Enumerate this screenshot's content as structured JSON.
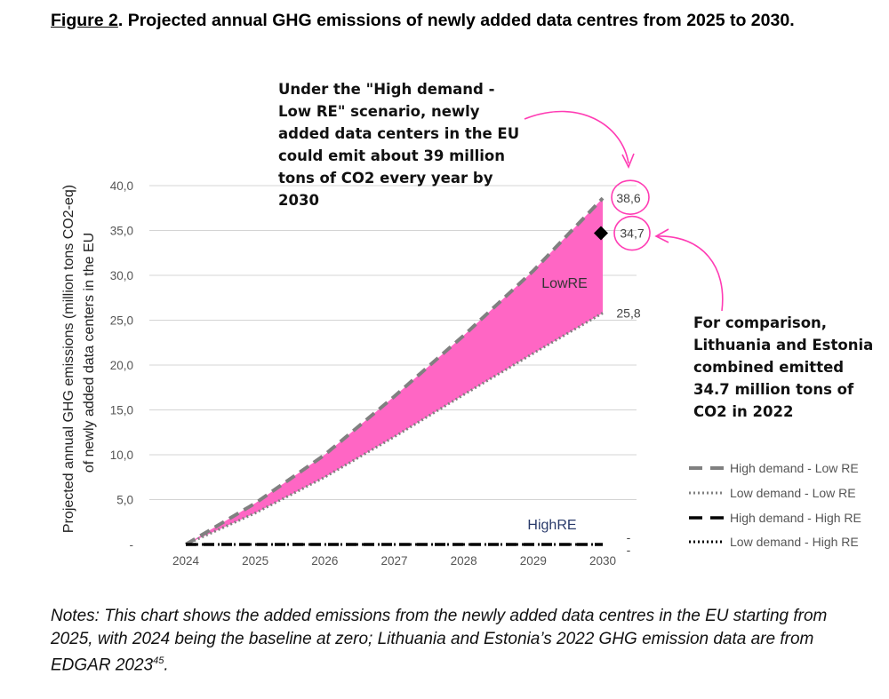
{
  "figure": {
    "label": "Figure 2",
    "title_rest": ". Projected annual GHG emissions of newly added data centres from 2025 to 2030."
  },
  "chart_data": {
    "type": "line",
    "title": "Projected annual GHG emissions of newly added data centres from 2025 to 2030",
    "ylabel_line1": "Projected annual GHG emissions (million tons CO2-eq)",
    "ylabel_line2": "of newly added data centers in the EU",
    "x": [
      2024,
      2025,
      2026,
      2027,
      2028,
      2029,
      2030
    ],
    "x_tick_labels": [
      "2024",
      "2025",
      "2026",
      "2027",
      "2028",
      "2029",
      "2030"
    ],
    "ylim": [
      0,
      40
    ],
    "y_ticks": [
      0,
      5,
      10,
      15,
      20,
      25,
      30,
      35,
      40
    ],
    "y_tick_labels": [
      "-",
      "5,0",
      "10,0",
      "15,0",
      "20,0",
      "25,0",
      "30,0",
      "35,0",
      "40,0"
    ],
    "grid": true,
    "series": [
      {
        "name": "High demand - Low RE",
        "style": "dashed",
        "color": "#808080",
        "values": [
          0,
          4.6,
          10.0,
          16.5,
          23.3,
          30.5,
          38.6
        ]
      },
      {
        "name": "Low demand - Low RE",
        "style": "dotted",
        "color": "#808080",
        "values": [
          0,
          3.5,
          7.5,
          12.0,
          16.7,
          21.3,
          25.8
        ]
      },
      {
        "name": "High demand - High RE",
        "style": "dashed",
        "color": "#000000",
        "values": [
          0,
          0,
          0,
          0,
          0,
          0,
          0
        ]
      },
      {
        "name": "Low demand - High RE",
        "style": "dotted",
        "color": "#000000",
        "values": [
          0,
          0,
          0,
          0,
          0,
          0,
          0
        ]
      }
    ],
    "band": {
      "name": "LowRE",
      "color": "#ff66c4"
    },
    "band_high_label": "HighRE",
    "end_labels": [
      {
        "text": "38,6",
        "value": 38.6
      },
      {
        "text": "25,8",
        "value": 25.8
      },
      {
        "text": "-",
        "value": 0.8
      },
      {
        "text": "-",
        "value": -0.6
      }
    ],
    "comparison": {
      "text": "34,7",
      "value": 34.7,
      "x": 2030
    },
    "highlight_color": "#ff3cb4",
    "legend_position": "right"
  },
  "annotations": {
    "top": "Under the \"High demand - Low RE\" scenario, newly added data centers in the EU could emit about 39 million tons of CO2 every year by 2030",
    "right": "For comparison, Lithuania and Estonia combined emitted 34.7 million tons of CO2 in 2022"
  },
  "notes": {
    "text": "Notes: This chart shows the added emissions from the newly added data centres in the EU starting from 2025, with 2024 being the baseline at zero; Lithuania and Estonia’s 2022 GHG emission data are from EDGAR 2023",
    "superscript": "45",
    "end": "."
  }
}
